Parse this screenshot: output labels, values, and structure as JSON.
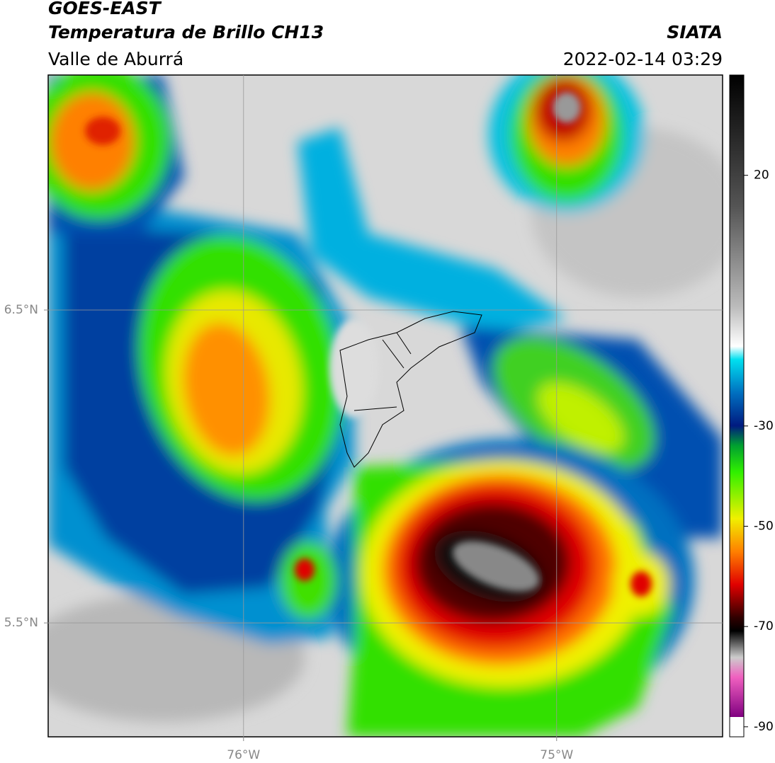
{
  "header": {
    "title": "GOES-EAST",
    "subtitle": "Temperatura de Brillo CH13",
    "region": "Valle de Aburrá",
    "source": "SIATA",
    "datetime": "2022-02-14 03:29"
  },
  "map": {
    "lon_lim": [
      -76.624,
      -74.47
    ],
    "lat_lim": [
      5.136,
      7.251
    ],
    "lon_ticks": [
      {
        "value": -76,
        "label": "76°W"
      },
      {
        "value": -75,
        "label": "75°W"
      }
    ],
    "lat_ticks": [
      {
        "value": 6.5,
        "label": "6.5°N"
      },
      {
        "value": 5.5,
        "label": "5.5°N"
      }
    ]
  },
  "colorbar": {
    "lim": [
      -92,
      40
    ],
    "ticks": [
      20,
      -30,
      -50,
      -70,
      -90
    ]
  }
}
